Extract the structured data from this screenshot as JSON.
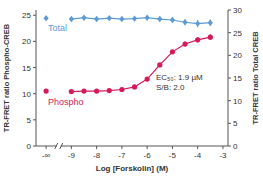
{
  "chart_data": {
    "type": "scatter",
    "x_label": "Log [Forskolin] (M)",
    "y_label": "TR-FRET ratio Phospho-CREB",
    "y2_label": "TR-FRET ratio Total CREB",
    "annotations": [
      "EC₅₀: 1.9 µM",
      "S/B: 2.0"
    ],
    "x": [
      -10,
      -9,
      -8.5,
      -8,
      -7.5,
      -7,
      -6.5,
      -6,
      -5.5,
      -5,
      -4.5,
      -4,
      -3.5
    ],
    "xlim": [
      -10.4,
      -2.8
    ],
    "xticks": [
      {
        "value": -10,
        "label": "-∞"
      },
      -9,
      -8,
      -7,
      -6,
      -5,
      -4,
      -3
    ],
    "ylim": [
      0,
      26
    ],
    "yticks": [
      0,
      5,
      10,
      15,
      20,
      25
    ],
    "y2lim": [
      0,
      30
    ],
    "y2ticks": [
      0,
      5,
      10,
      15,
      20,
      25,
      30
    ],
    "series": [
      {
        "name": "Total",
        "color": "#5b9bd5",
        "axis": "y2",
        "marker": "diamond",
        "line_style": "solid",
        "values": [
          28.2,
          28.0,
          28.3,
          28.0,
          28.2,
          28.0,
          28.1,
          28.3,
          28.0,
          27.8,
          27.3,
          27.0,
          27.2
        ],
        "errors": [
          0.3,
          0.3,
          0.3,
          0.3,
          0.3,
          0.3,
          0.3,
          0.3,
          0.3,
          0.4,
          0.6,
          0.8,
          0.7
        ]
      },
      {
        "name": "Phospho",
        "color": "#d6195a",
        "axis": "y",
        "marker": "circle",
        "line_style": "solid",
        "values": [
          10.5,
          10.4,
          10.5,
          10.5,
          10.6,
          10.8,
          11.3,
          12.8,
          15.5,
          18.0,
          19.5,
          20.3,
          20.8
        ],
        "errors": [
          0.2,
          0.2,
          0.2,
          0.2,
          0.2,
          0.2,
          0.2,
          0.3,
          0.3,
          0.4,
          0.5,
          0.5,
          0.5
        ]
      }
    ]
  }
}
